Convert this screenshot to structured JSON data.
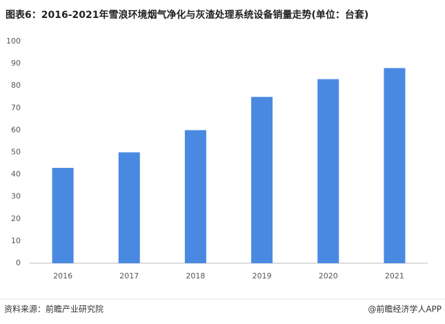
{
  "chart_data": {
    "type": "bar",
    "title": "图表6：2016-2021年雪浪环境烟气净化与灰渣处理系统设备销量走势(单位：台套)",
    "categories": [
      "2016",
      "2017",
      "2018",
      "2019",
      "2020",
      "2021"
    ],
    "values": [
      43,
      50,
      60,
      75,
      83,
      88
    ],
    "color": "#4a89e2",
    "ylim": [
      0,
      100
    ],
    "yticks": [
      0,
      10,
      20,
      30,
      40,
      50,
      60,
      70,
      80,
      90,
      100
    ],
    "grid": false,
    "source": "资料来源：前瞻产业研究院",
    "credit": "@前瞻经济学人APP"
  }
}
